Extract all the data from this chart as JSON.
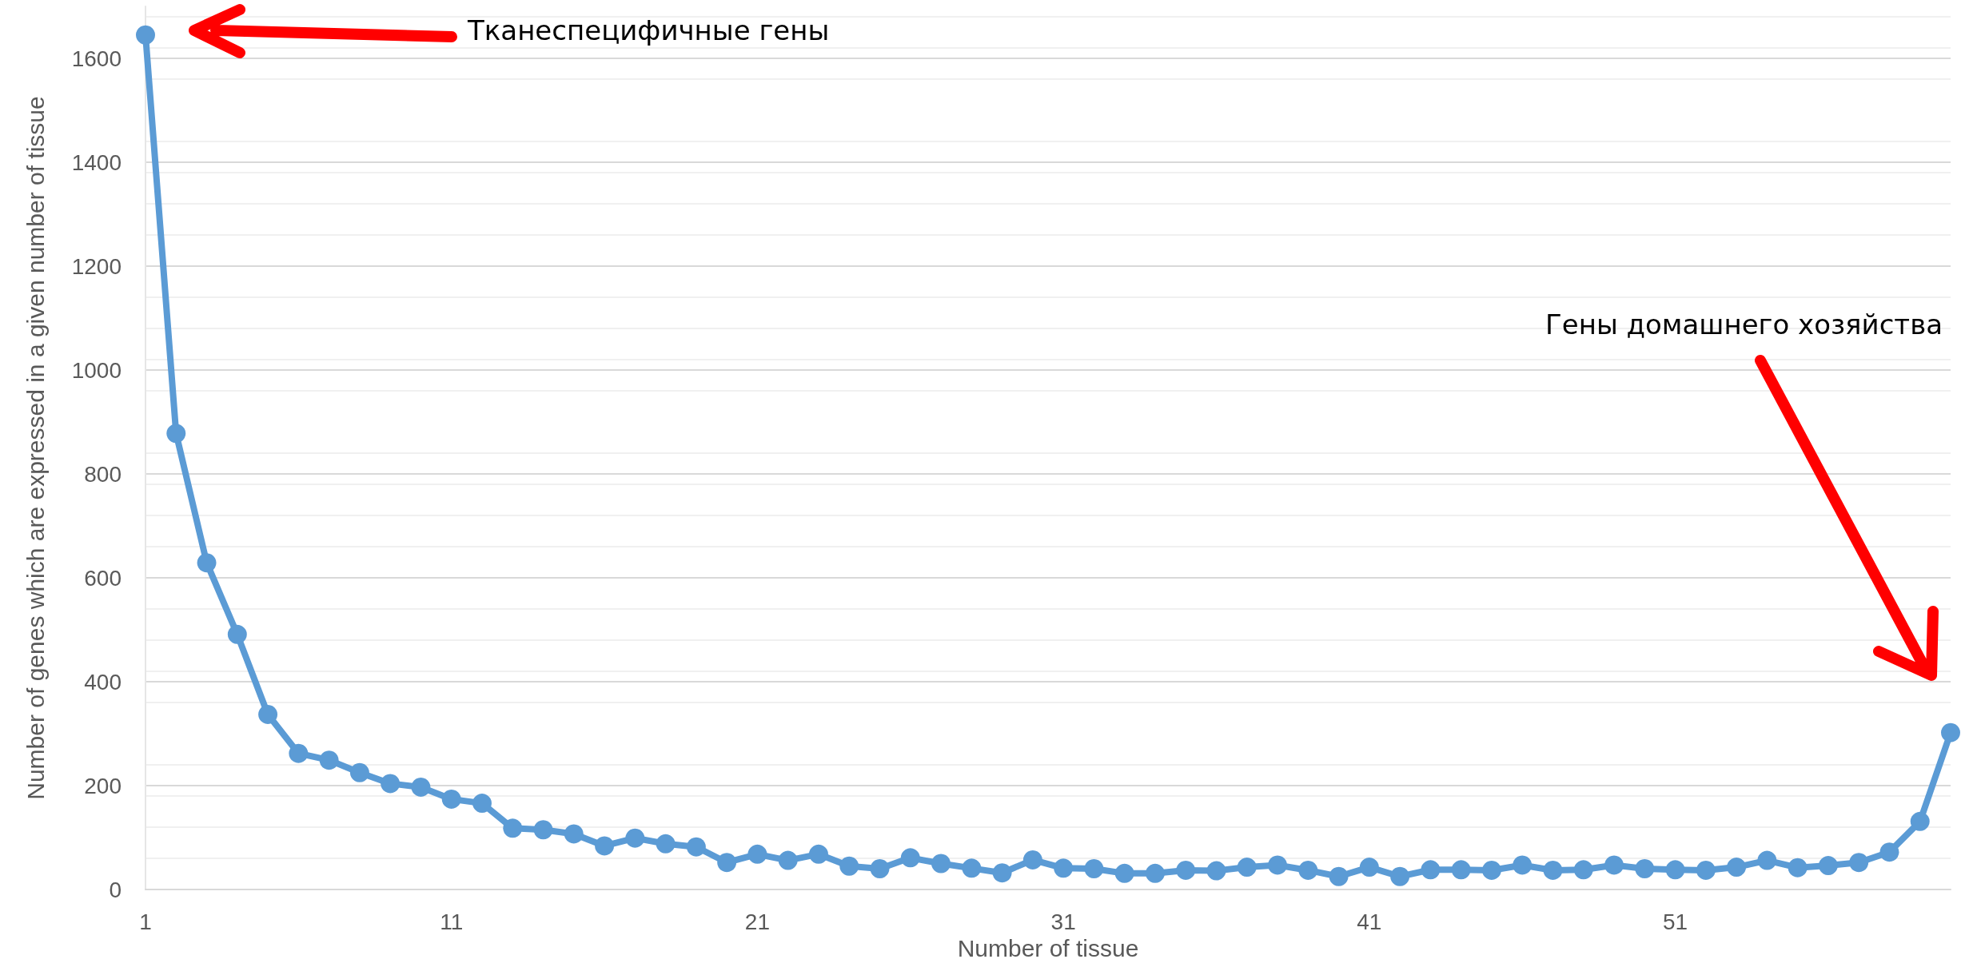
{
  "chart_data": {
    "type": "line",
    "xlabel": "Number of tissue",
    "ylabel": "Number of genes which are expressed in a given number of tissue",
    "annotations": [
      "Тканеспецифичные гены",
      "Гены домашнего хозяйства"
    ],
    "categories": [
      "1",
      null,
      null,
      null,
      null,
      null,
      null,
      null,
      null,
      null,
      "11",
      null,
      null,
      null,
      null,
      null,
      null,
      null,
      null,
      null,
      "21",
      null,
      null,
      null,
      null,
      null,
      null,
      null,
      null,
      null,
      "31",
      null,
      null,
      null,
      null,
      null,
      null,
      null,
      null,
      null,
      "41",
      null,
      null,
      null,
      null,
      null,
      null,
      null,
      null,
      null,
      "51",
      null,
      null,
      null,
      null,
      null,
      null,
      null,
      null,
      null
    ],
    "series": [
      {
        "color": "#5b9bd5",
        "values": [
          1645,
          878,
          629,
          491,
          337,
          262,
          249,
          225,
          204,
          197,
          174,
          166,
          118,
          115,
          107,
          84,
          99,
          88,
          82,
          52,
          68,
          56,
          68,
          45,
          40,
          61,
          50,
          41,
          32,
          57,
          41,
          40,
          31,
          31,
          37,
          36,
          43,
          47,
          37,
          25,
          43,
          25,
          38,
          38,
          37,
          47,
          37,
          38,
          47,
          40,
          38,
          37,
          43,
          56,
          42,
          46,
          52,
          72,
          131,
          302
        ]
      }
    ],
    "ylim": [
      0,
      1700
    ],
    "yticks": [
      0,
      200,
      400,
      600,
      800,
      1000,
      1200,
      1400,
      1600
    ],
    "grid": "y",
    "marker": "circle",
    "line_style": "solid"
  }
}
